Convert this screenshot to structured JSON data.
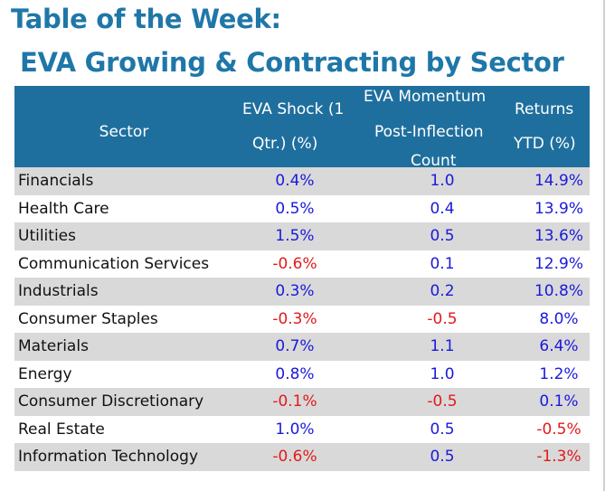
{
  "title": {
    "line1": "Table of the Week:",
    "line2": "EVA Growing & Contracting by Sector"
  },
  "headers": {
    "sector": "Sector",
    "shock_l1": "EVA Shock (1",
    "shock_l2": "Qtr.) (%)",
    "mom_l1": "EVA Momentum",
    "mom_l2": "Post-Inflection",
    "mom_l3": "Count",
    "ret_l1": "Returns",
    "ret_l2": "YTD (%)"
  },
  "rows": [
    {
      "sector": "Financials",
      "shock": "0.4%",
      "momentum": "1.0",
      "returns": "14.9%"
    },
    {
      "sector": "Health Care",
      "shock": "0.5%",
      "momentum": "0.4",
      "returns": "13.9%"
    },
    {
      "sector": "Utilities",
      "shock": "1.5%",
      "momentum": "0.5",
      "returns": "13.6%"
    },
    {
      "sector": "Communication Services",
      "shock": "-0.6%",
      "momentum": "0.1",
      "returns": "12.9%"
    },
    {
      "sector": "Industrials",
      "shock": "0.3%",
      "momentum": "0.2",
      "returns": "10.8%"
    },
    {
      "sector": "Consumer Staples",
      "shock": "-0.3%",
      "momentum": "-0.5",
      "returns": "8.0%"
    },
    {
      "sector": "Materials",
      "shock": "0.7%",
      "momentum": "1.1",
      "returns": "6.4%"
    },
    {
      "sector": "Energy",
      "shock": "0.8%",
      "momentum": "1.0",
      "returns": "1.2%"
    },
    {
      "sector": "Consumer Discretionary",
      "shock": "-0.1%",
      "momentum": "-0.5",
      "returns": "0.1%"
    },
    {
      "sector": "Real Estate",
      "shock": "1.0%",
      "momentum": "0.5",
      "returns": "-0.5%"
    },
    {
      "sector": "Information Technology",
      "shock": "-0.6%",
      "momentum": "0.5",
      "returns": "-1.3%"
    }
  ],
  "colors": {
    "title": "#1f77a8",
    "header_bg": "#1f6f9e",
    "row_shade": "#d9d9d9",
    "positive": "#1a1adb",
    "negative": "#e21a1a"
  }
}
